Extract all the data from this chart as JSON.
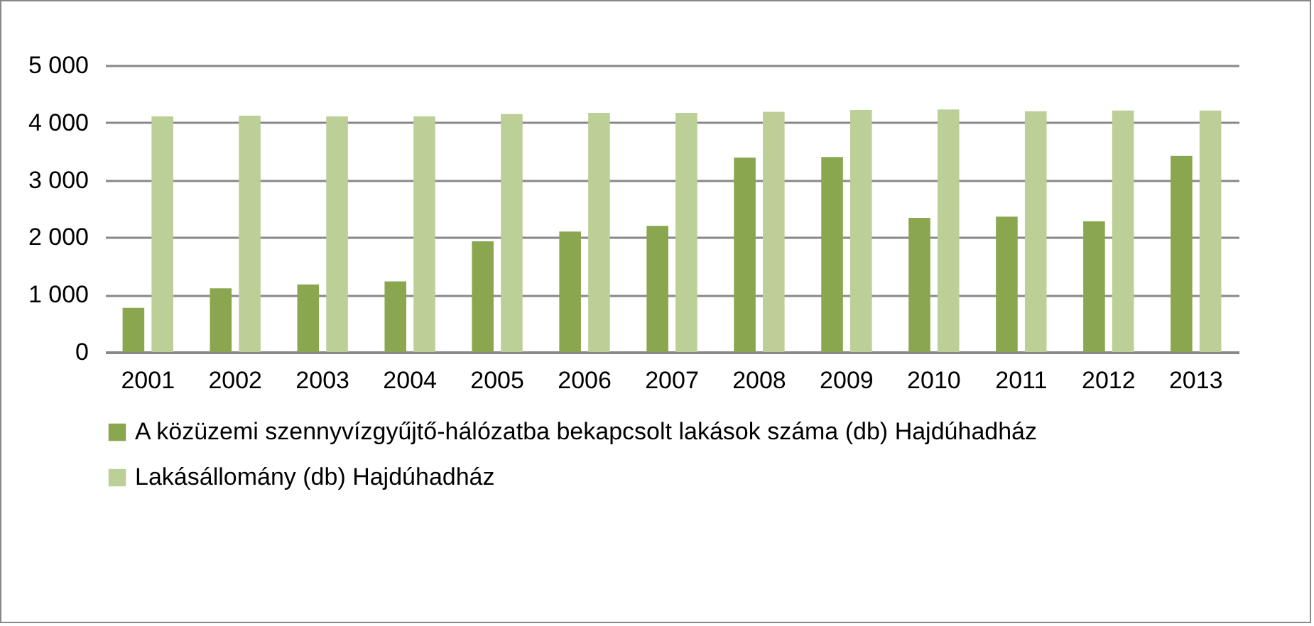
{
  "chart_data": {
    "type": "bar",
    "categories": [
      "2001",
      "2002",
      "2003",
      "2004",
      "2005",
      "2006",
      "2007",
      "2008",
      "2009",
      "2010",
      "2011",
      "2012",
      "2013"
    ],
    "series": [
      {
        "name": "A közüzemi szennyvízgyűjtő-hálózatba bekapcsolt lakások száma (db) Hajdúhadház",
        "color": "#8aa64e",
        "values": [
          770,
          1110,
          1180,
          1230,
          1930,
          2100,
          2200,
          3390,
          3400,
          2340,
          2360,
          2280,
          3420
        ]
      },
      {
        "name": "Lakásállomány (db) Hajdúhadház",
        "color": "#bbcf96",
        "values": [
          4110,
          4120,
          4110,
          4110,
          4150,
          4170,
          4170,
          4190,
          4220,
          4230,
          4200,
          4210,
          4210
        ]
      }
    ],
    "ylim": [
      0,
      5000
    ],
    "yticks": [
      {
        "value": 0,
        "label": "0"
      },
      {
        "value": 1000,
        "label": "1 000"
      },
      {
        "value": 2000,
        "label": "2 000"
      },
      {
        "value": 3000,
        "label": "3 000"
      },
      {
        "value": 4000,
        "label": "4 000"
      },
      {
        "value": 5000,
        "label": "5 000"
      }
    ],
    "grid": "y",
    "legend": "bottom"
  }
}
